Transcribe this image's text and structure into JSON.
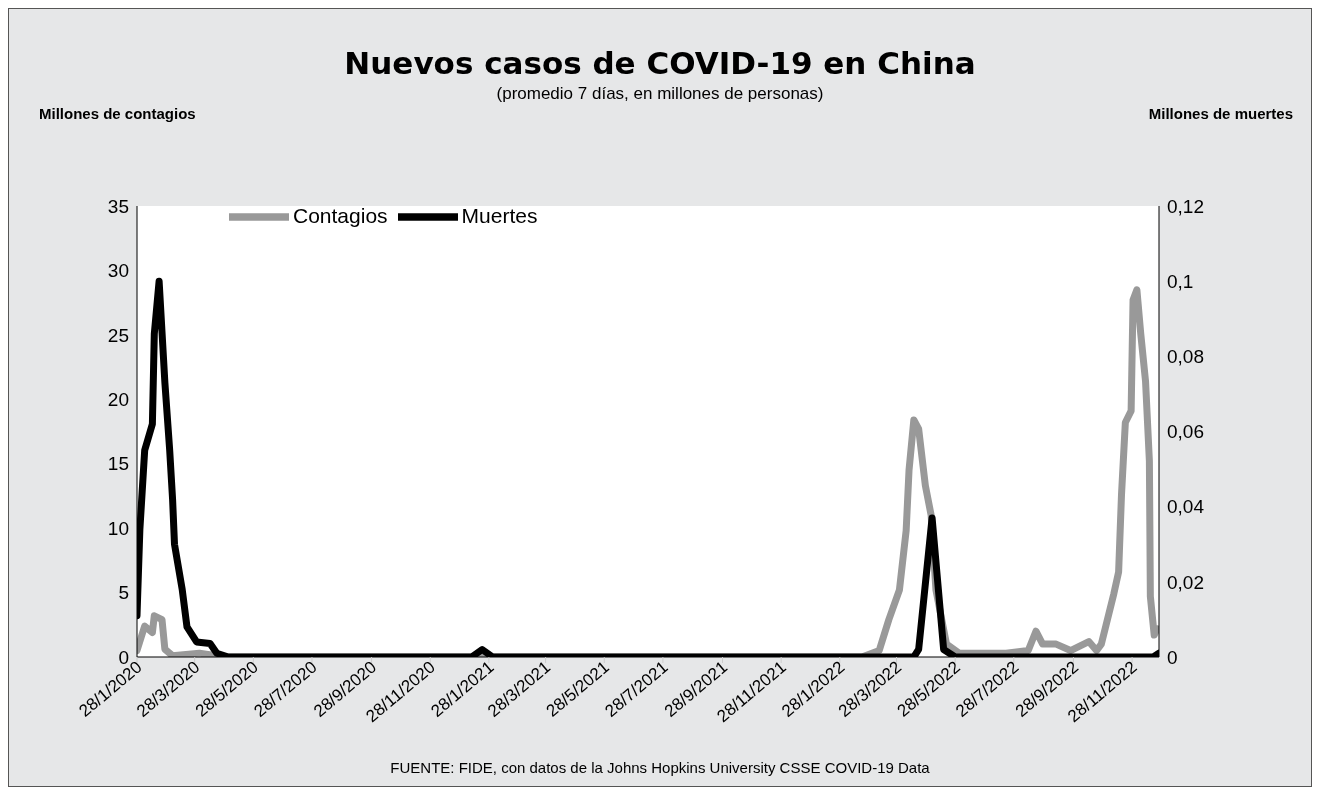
{
  "chart_data": {
    "type": "line",
    "title": "Nuevos casos de COVID-19 en China",
    "subtitle": "(promedio 7 días, en millones de personas)",
    "ylabel": "Millones de contagios",
    "y2label": "Millones de muertes",
    "annotations": [
      "FUENTE: FIDE, con datos de la  Johns Hopkins University CSSE COVID-19 Data"
    ],
    "xlim": [
      "2020-01-28",
      "2022-12-26"
    ],
    "xticks": [
      {
        "value": "2020-01-28",
        "label": "28/1/2020"
      },
      {
        "value": "2020-03-28",
        "label": "28/3/2020"
      },
      {
        "value": "2020-05-28",
        "label": "28/5/2020"
      },
      {
        "value": "2020-07-28",
        "label": "28/7/2020"
      },
      {
        "value": "2020-09-28",
        "label": "28/9/2020"
      },
      {
        "value": "2020-11-28",
        "label": "28/11/2020"
      },
      {
        "value": "2021-01-28",
        "label": "28/1/2021"
      },
      {
        "value": "2021-03-28",
        "label": "28/3/2021"
      },
      {
        "value": "2021-05-28",
        "label": "28/5/2021"
      },
      {
        "value": "2021-07-28",
        "label": "28/7/2021"
      },
      {
        "value": "2021-09-28",
        "label": "28/9/2021"
      },
      {
        "value": "2021-11-28",
        "label": "28/11/2021"
      },
      {
        "value": "2022-01-28",
        "label": "28/1/2022"
      },
      {
        "value": "2022-03-28",
        "label": "28/3/2022"
      },
      {
        "value": "2022-05-28",
        "label": "28/5/2022"
      },
      {
        "value": "2022-07-28",
        "label": "28/7/2022"
      },
      {
        "value": "2022-09-28",
        "label": "28/9/2022"
      },
      {
        "value": "2022-11-28",
        "label": "28/11/2022"
      }
    ],
    "ylim": [
      0,
      35
    ],
    "yticks": [
      0,
      5,
      10,
      15,
      20,
      25,
      30,
      35
    ],
    "y2lim": [
      0,
      0.12
    ],
    "y2ticks": [
      0,
      {
        "value": 0.02,
        "label": "0,02"
      },
      {
        "value": 0.04,
        "label": "0,04"
      },
      {
        "value": 0.06,
        "label": "0,06"
      },
      {
        "value": 0.08,
        "label": "0,08"
      },
      {
        "value": 0.1,
        "label": "0,1"
      },
      {
        "value": 0.12,
        "label": "0,12"
      }
    ],
    "grid": false,
    "legend": "top left",
    "marker": "none",
    "line_style": "solid",
    "series": [
      {
        "name": "Contagios",
        "color": "#999999",
        "x": [
          "2020-01-28",
          "2020-02-05",
          "2020-02-13",
          "2020-02-15",
          "2020-02-23",
          "2020-02-26",
          "2020-03-05",
          "2020-04-02",
          "2020-04-28",
          "2022-02-20",
          "2022-03-10",
          "2022-03-20",
          "2022-03-31",
          "2022-04-07",
          "2022-04-10",
          "2022-04-15",
          "2022-04-20",
          "2022-04-27",
          "2022-05-03",
          "2022-05-08",
          "2022-05-19",
          "2022-06-01",
          "2022-07-20",
          "2022-08-12",
          "2022-08-20",
          "2022-08-27",
          "2022-09-10",
          "2022-09-25",
          "2022-10-14",
          "2022-10-22",
          "2022-10-27",
          "2022-11-09",
          "2022-11-14",
          "2022-11-17",
          "2022-11-21",
          "2022-11-27",
          "2022-11-29",
          "2022-12-03",
          "2022-12-07",
          "2022-12-12",
          "2022-12-16",
          "2022-12-17",
          "2022-12-21",
          "2022-12-24"
        ],
        "values": [
          0.5,
          2.4,
          1.9,
          3.2,
          2.9,
          0.6,
          0.1,
          0.3,
          0,
          0,
          0.5,
          2.9,
          5.2,
          9.8,
          14.5,
          18.4,
          17.7,
          13.3,
          11,
          5.2,
          1,
          0.3,
          0.3,
          0.5,
          2,
          1,
          1,
          0.5,
          1.2,
          0.5,
          1,
          4.9,
          6.6,
          12.6,
          18.2,
          19.1,
          27.7,
          28.5,
          25.1,
          21.4,
          15.2,
          4.7,
          1.7,
          2.2
        ]
      },
      {
        "name": "Muertes",
        "color": "#000000",
        "axis": "y2",
        "x": [
          "2020-01-28",
          "2020-01-31",
          "2020-02-05",
          "2020-02-13",
          "2020-02-15",
          "2020-02-20",
          "2020-02-26",
          "2020-03-02",
          "2020-03-05",
          "2020-03-07",
          "2020-03-15",
          "2020-03-20",
          "2020-03-30",
          "2020-04-13",
          "2020-04-20",
          "2020-05-02",
          "2021-01-10",
          "2021-01-21",
          "2021-02-01",
          "2022-04-15",
          "2022-04-20",
          "2022-05-04",
          "2022-05-16",
          "2022-05-28",
          "2022-12-20",
          "2022-12-26"
        ],
        "values": [
          0.011,
          0.034,
          0.055,
          0.062,
          0.086,
          0.1,
          0.073,
          0.055,
          0.042,
          0.03,
          0.018,
          0.008,
          0.004,
          0.0036,
          0.001,
          0,
          0,
          0.002,
          0,
          0,
          0.002,
          0.037,
          0.002,
          0,
          0,
          0.001
        ]
      }
    ]
  }
}
